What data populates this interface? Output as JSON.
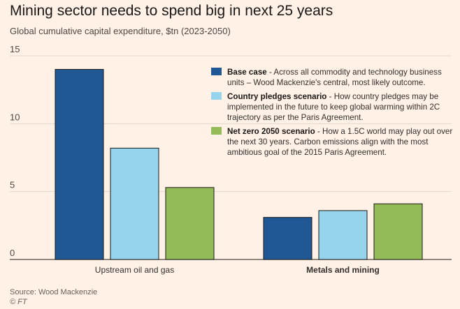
{
  "title": "Mining sector needs to spend big in next 25 years",
  "subtitle": "Global cumulative capital expenditure, $tn (2023-2050)",
  "source": "Source: Wood Mackenzie",
  "copyright": "© FT",
  "legend": [
    {
      "name": "Base case",
      "description": " - Across all commodity and technology business units – Wood Mackenzie's central, most likely outcome.",
      "color": "#1f5895"
    },
    {
      "name": "Country pledges scenario",
      "description": " - How country pledges may be implemented in the future to keep global warming within 2C trajectory as per the Paris Agreement.",
      "color": "#96d3ed"
    },
    {
      "name": "Net zero 2050 scenario",
      "description": " - How a 1.5C world may play out over the next 30 years. Carbon emissions align with the most ambitious goal of the 2015 Paris Agreement.",
      "color": "#93bb57"
    }
  ],
  "chart_data": {
    "type": "bar",
    "title": "Mining sector needs to spend big in next 25 years",
    "subtitle": "Global cumulative capital expenditure, $tn (2023-2050)",
    "categories": [
      "Upstream oil and gas",
      "Metals and mining"
    ],
    "category_bold": [
      false,
      true
    ],
    "series": [
      {
        "name": "Base case",
        "values": [
          14.0,
          3.1
        ],
        "color": "#1f5895"
      },
      {
        "name": "Country pledges scenario",
        "values": [
          8.2,
          3.6
        ],
        "color": "#96d3ed"
      },
      {
        "name": "Net zero 2050 scenario",
        "values": [
          5.3,
          4.1
        ],
        "color": "#93bb57"
      }
    ],
    "xlabel": "",
    "ylabel": "",
    "ylim": [
      0,
      15
    ],
    "yticks": [
      0,
      5,
      10,
      15
    ],
    "grid": true,
    "legend_position": "top-right"
  }
}
